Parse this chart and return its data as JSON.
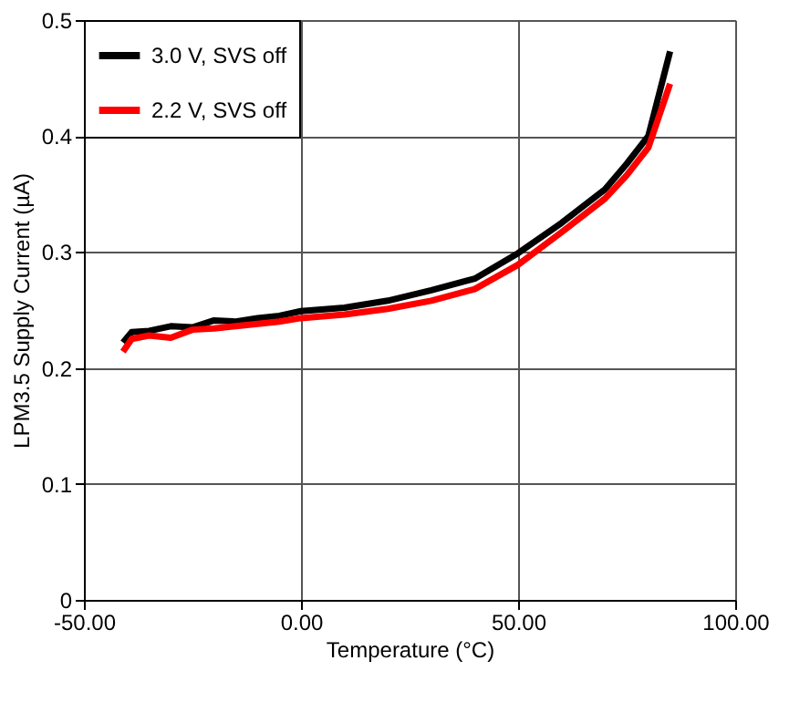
{
  "chart_data": {
    "type": "line",
    "xlabel": "Temperature (°C)",
    "ylabel": "LPM3.5 Supply Current (µA)",
    "xlim": [
      -50,
      100
    ],
    "xticks": [
      {
        "value": -50,
        "label": "-50.00"
      },
      {
        "value": 0,
        "label": "0.00"
      },
      {
        "value": 50,
        "label": "50.00"
      },
      {
        "value": 100,
        "label": "100.00"
      }
    ],
    "ylim": [
      0,
      0.5
    ],
    "yticks": [
      0,
      0.1,
      0.2,
      0.3,
      0.4,
      0.5
    ],
    "grid": true,
    "legend": "top left",
    "marker": "none",
    "line_style": "solid",
    "series": [
      {
        "name": "3.0 V, SVS off",
        "color": "#000000",
        "x": [
          -41,
          -39,
          -35,
          -30,
          -25,
          -20,
          -15,
          -10,
          -5,
          0,
          10,
          20,
          30,
          40,
          50,
          60,
          70,
          75,
          80,
          85
        ],
        "values": [
          0.222,
          0.231,
          0.232,
          0.236,
          0.235,
          0.241,
          0.24,
          0.243,
          0.245,
          0.249,
          0.252,
          0.258,
          0.267,
          0.277,
          0.299,
          0.325,
          0.354,
          0.376,
          0.4,
          0.473
        ]
      },
      {
        "name": "2.2 V, SVS off",
        "color": "#ff0000",
        "x": [
          -41,
          -39,
          -35,
          -30,
          -25,
          -20,
          -15,
          -10,
          -5,
          0,
          10,
          20,
          30,
          40,
          50,
          60,
          70,
          75,
          80,
          85
        ],
        "values": [
          0.214,
          0.225,
          0.228,
          0.226,
          0.233,
          0.234,
          0.236,
          0.238,
          0.24,
          0.243,
          0.246,
          0.251,
          0.258,
          0.268,
          0.289,
          0.317,
          0.346,
          0.366,
          0.39,
          0.445
        ]
      }
    ]
  }
}
